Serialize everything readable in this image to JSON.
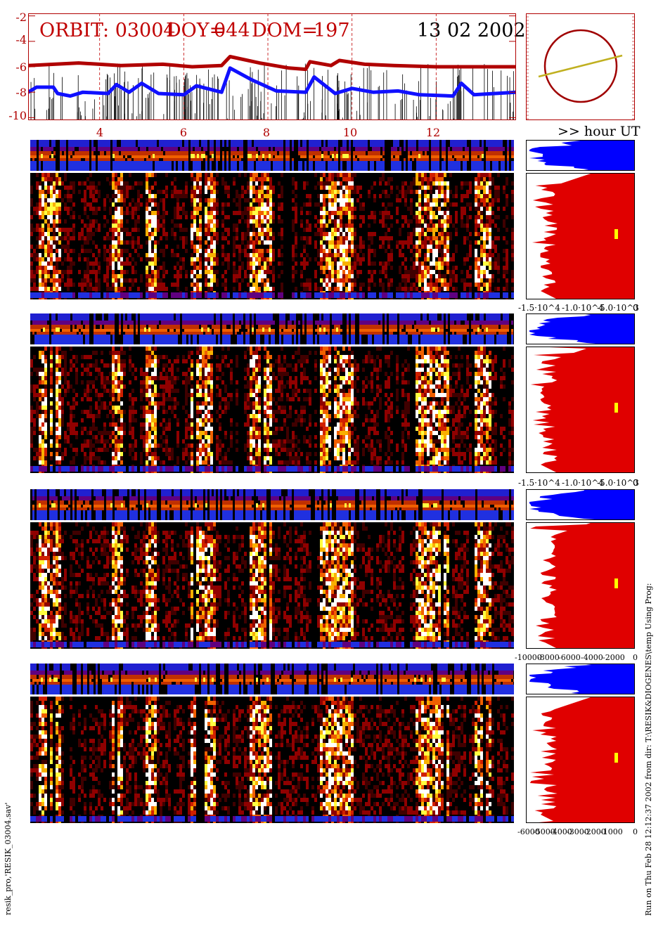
{
  "header": {
    "orbit_label": "ORBIT: 03004",
    "doy_label": "DOY=",
    "doy_value": "044",
    "dom_label": "DOM=",
    "dom_value": "197",
    "date": "13 02 2002"
  },
  "top_plot": {
    "y_ticks": [
      "-2",
      "-4",
      "-6",
      "-8",
      "-10"
    ],
    "x_ticks": [
      "4",
      "6",
      "8",
      "10",
      "12"
    ],
    "x_axis_label": ">> hour UT",
    "y_range": [
      -10.2,
      -1.8
    ],
    "x_range": [
      2.3,
      13.9
    ],
    "red_series": [
      [
        2.3,
        -5.9
      ],
      [
        3.5,
        -5.7
      ],
      [
        4.5,
        -5.9
      ],
      [
        5.5,
        -5.8
      ],
      [
        6.2,
        -6.0
      ],
      [
        6.9,
        -5.9
      ],
      [
        7.1,
        -5.2
      ],
      [
        7.8,
        -5.7
      ],
      [
        8.5,
        -6.1
      ],
      [
        8.9,
        -6.2
      ],
      [
        9.0,
        -5.6
      ],
      [
        9.5,
        -5.9
      ],
      [
        9.7,
        -5.5
      ],
      [
        10.3,
        -5.8
      ],
      [
        11.0,
        -5.9
      ],
      [
        12.0,
        -6.0
      ],
      [
        13.0,
        -6.0
      ],
      [
        13.9,
        -6.0
      ]
    ],
    "blue_series": [
      [
        2.3,
        -8.0
      ],
      [
        2.5,
        -7.6
      ],
      [
        2.9,
        -7.6
      ],
      [
        3.0,
        -8.1
      ],
      [
        3.3,
        -8.3
      ],
      [
        3.6,
        -8.0
      ],
      [
        4.2,
        -8.1
      ],
      [
        4.4,
        -7.4
      ],
      [
        4.7,
        -8.0
      ],
      [
        5.0,
        -7.3
      ],
      [
        5.4,
        -8.1
      ],
      [
        6.0,
        -8.2
      ],
      [
        6.3,
        -7.5
      ],
      [
        6.9,
        -8.0
      ],
      [
        7.1,
        -6.1
      ],
      [
        7.6,
        -7.0
      ],
      [
        8.2,
        -7.9
      ],
      [
        8.9,
        -8.0
      ],
      [
        9.1,
        -6.8
      ],
      [
        9.6,
        -8.1
      ],
      [
        10.0,
        -7.7
      ],
      [
        10.5,
        -8.0
      ],
      [
        11.1,
        -7.9
      ],
      [
        11.6,
        -8.2
      ],
      [
        12.4,
        -8.3
      ],
      [
        12.6,
        -7.3
      ],
      [
        12.9,
        -8.2
      ],
      [
        13.9,
        -8.0
      ]
    ]
  },
  "side_panels": [
    {
      "x_ticks": [
        "-1.5·10^4",
        "-1.0·10^4",
        "-5.0·10^3",
        "0"
      ]
    },
    {
      "x_ticks": [
        "-1.5·10^4",
        "-1.0·10^4",
        "-5.0·10^3",
        "0"
      ]
    },
    {
      "x_ticks": [
        "-10000",
        "-8000",
        "-6000",
        "-4000",
        "-2000",
        "0"
      ]
    },
    {
      "x_ticks": [
        "-6000",
        "-5000",
        "-4000",
        "-3000",
        "-2000",
        "-1000",
        "0"
      ]
    }
  ],
  "footer": {
    "left_text": "resik_pro,'RESIK_03004.sav'",
    "right_text": "Run on Thu Feb 28 12:12:37 2002  from dir: T:\\RESIK&DIOGENES\\temp Using Prog:"
  },
  "colors": {
    "title_red": "#c00000",
    "red_curve": "#b00000",
    "blue_curve": "#1010ff",
    "hist_red": "#e00000",
    "hist_blue": "#0000ff",
    "orbit_line": "#c0b020",
    "marker": "#ffff00"
  }
}
